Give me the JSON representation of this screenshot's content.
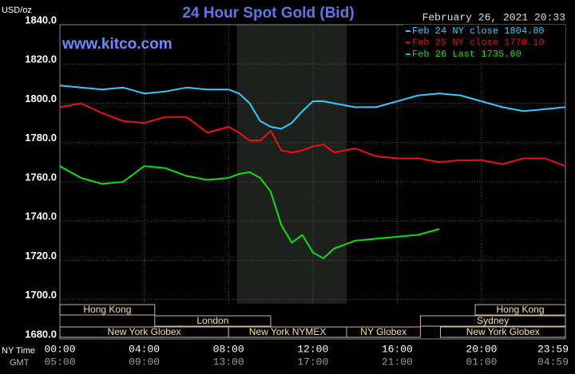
{
  "chart_data": {
    "type": "line",
    "title": "24 Hour Spot Gold (Bid)",
    "date_label": "February 26, 2021 20:33",
    "watermark": "www.kitco.com",
    "y_label": "USD/oz",
    "x_label": "NY Time",
    "x2_label": "GMT",
    "x": [
      0,
      1,
      2,
      3,
      4,
      5,
      6,
      7,
      8,
      8.5,
      9,
      9.5,
      10,
      10.5,
      11,
      11.5,
      12,
      12.5,
      13,
      14,
      15,
      16,
      17,
      18,
      19,
      20,
      21,
      22,
      23,
      23.98
    ],
    "series": [
      {
        "name": "Feb 24 NY close 1804.80",
        "color": "#33ccff",
        "values": [
          1809,
          1808,
          1807,
          1808,
          1805,
          1806,
          1808,
          1807,
          1807,
          1805,
          1800,
          1791,
          1788,
          1787,
          1790,
          1796,
          1801,
          1801,
          1800,
          1798,
          1798,
          1801,
          1804,
          1805,
          1804,
          1801,
          1798,
          1796,
          1797,
          1798
        ]
      },
      {
        "name": "Feb 25 NY close 1770.10",
        "color": "#ee1111",
        "values": [
          1798,
          1800,
          1795,
          1791,
          1790,
          1793,
          1793,
          1785,
          1788,
          1785,
          1781,
          1781,
          1786,
          1776,
          1775,
          1776,
          1778,
          1779,
          1775,
          1777,
          1773,
          1772,
          1772,
          1770,
          1771,
          1771,
          1769,
          1772,
          1772,
          1768
        ]
      },
      {
        "name": "Feb 26 Last 1735.60",
        "color": "#11dd11",
        "values": [
          1768,
          1762,
          1759,
          1760,
          1768,
          1767,
          1763,
          1761,
          1762,
          1764,
          1765,
          1762,
          1755,
          1738,
          1729,
          1733,
          1724,
          1721,
          1726,
          1730,
          1731,
          1732,
          1733,
          1736,
          null,
          null,
          null,
          null,
          null,
          null
        ]
      }
    ],
    "xlim": [
      0,
      23.98
    ],
    "xticks": [
      {
        "value": 0,
        "label": "00:00"
      },
      {
        "value": 4,
        "label": "04:00"
      },
      {
        "value": 8,
        "label": "08:00"
      },
      {
        "value": 12,
        "label": "12:00"
      },
      {
        "value": 16,
        "label": "16:00"
      },
      {
        "value": 20,
        "label": "20:00"
      },
      {
        "value": 23.98,
        "label": "23:59"
      }
    ],
    "gmt_labels": [
      "05:00",
      "09:00",
      "13:00",
      "17:00",
      "21:00",
      "01:00",
      "04:59"
    ],
    "ylim": [
      1680,
      1840
    ],
    "yticks": [
      {
        "value": 1680,
        "label": "1680.0"
      },
      {
        "value": 1700,
        "label": "1700.0"
      },
      {
        "value": 1720,
        "label": "1720.0"
      },
      {
        "value": 1740,
        "label": "1740.0"
      },
      {
        "value": 1760,
        "label": "1760.0"
      },
      {
        "value": 1780,
        "label": "1780.0"
      },
      {
        "value": 1800,
        "label": "1800.0"
      },
      {
        "value": 1820,
        "label": "1820.0"
      },
      {
        "value": 1840,
        "label": "1840.0"
      }
    ],
    "grid": true,
    "highlight_x": [
      8.4,
      13.6
    ],
    "sessions": [
      {
        "label": "Hong Kong",
        "row": 0,
        "start": 0,
        "end": 4.5
      },
      {
        "label": "Hong Kong",
        "row": 0,
        "start": 19.7,
        "end": 23.98
      },
      {
        "label": "London",
        "row": 1,
        "start": 4.5,
        "end": 10
      },
      {
        "label": "Sydney",
        "row": 1,
        "start": 17.1,
        "end": 23.98
      },
      {
        "label": "New York Globex",
        "row": 2,
        "start": 0,
        "end": 8
      },
      {
        "label": "New York NYMEX",
        "row": 2,
        "start": 8,
        "end": 13.6
      },
      {
        "label": "NY Globex",
        "row": 2,
        "start": 13.6,
        "end": 17.1
      },
      {
        "label": "New York Globex",
        "row": 2,
        "start": 18.05,
        "end": 23.98
      }
    ]
  }
}
